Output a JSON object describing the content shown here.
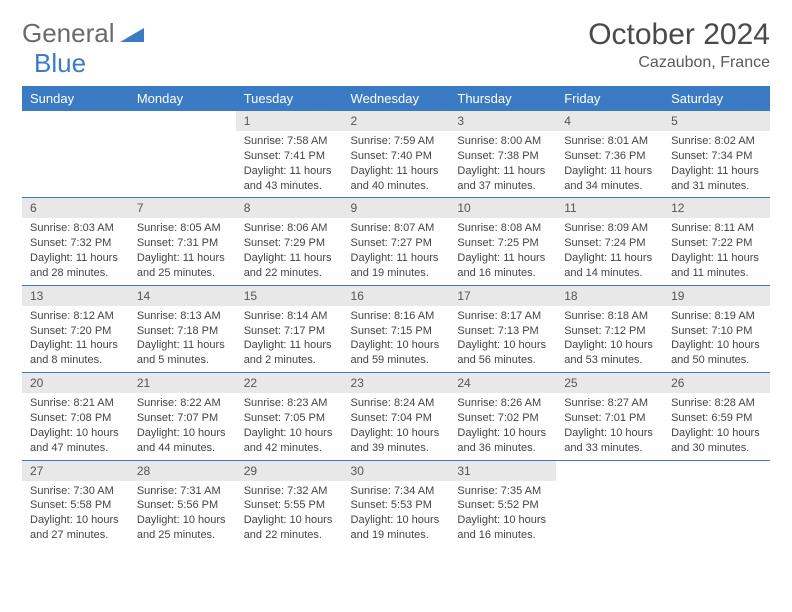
{
  "brand": {
    "part1": "General",
    "part2": "Blue"
  },
  "title": "October 2024",
  "location": "Cazaubon, France",
  "accent_color": "#3b7bc4",
  "header_bg": "#e8e8e8",
  "day_names": [
    "Sunday",
    "Monday",
    "Tuesday",
    "Wednesday",
    "Thursday",
    "Friday",
    "Saturday"
  ],
  "weeks": [
    [
      null,
      null,
      {
        "n": "1",
        "sr": "7:58 AM",
        "ss": "7:41 PM",
        "dl": "11 hours and 43 minutes."
      },
      {
        "n": "2",
        "sr": "7:59 AM",
        "ss": "7:40 PM",
        "dl": "11 hours and 40 minutes."
      },
      {
        "n": "3",
        "sr": "8:00 AM",
        "ss": "7:38 PM",
        "dl": "11 hours and 37 minutes."
      },
      {
        "n": "4",
        "sr": "8:01 AM",
        "ss": "7:36 PM",
        "dl": "11 hours and 34 minutes."
      },
      {
        "n": "5",
        "sr": "8:02 AM",
        "ss": "7:34 PM",
        "dl": "11 hours and 31 minutes."
      }
    ],
    [
      {
        "n": "6",
        "sr": "8:03 AM",
        "ss": "7:32 PM",
        "dl": "11 hours and 28 minutes."
      },
      {
        "n": "7",
        "sr": "8:05 AM",
        "ss": "7:31 PM",
        "dl": "11 hours and 25 minutes."
      },
      {
        "n": "8",
        "sr": "8:06 AM",
        "ss": "7:29 PM",
        "dl": "11 hours and 22 minutes."
      },
      {
        "n": "9",
        "sr": "8:07 AM",
        "ss": "7:27 PM",
        "dl": "11 hours and 19 minutes."
      },
      {
        "n": "10",
        "sr": "8:08 AM",
        "ss": "7:25 PM",
        "dl": "11 hours and 16 minutes."
      },
      {
        "n": "11",
        "sr": "8:09 AM",
        "ss": "7:24 PM",
        "dl": "11 hours and 14 minutes."
      },
      {
        "n": "12",
        "sr": "8:11 AM",
        "ss": "7:22 PM",
        "dl": "11 hours and 11 minutes."
      }
    ],
    [
      {
        "n": "13",
        "sr": "8:12 AM",
        "ss": "7:20 PM",
        "dl": "11 hours and 8 minutes."
      },
      {
        "n": "14",
        "sr": "8:13 AM",
        "ss": "7:18 PM",
        "dl": "11 hours and 5 minutes."
      },
      {
        "n": "15",
        "sr": "8:14 AM",
        "ss": "7:17 PM",
        "dl": "11 hours and 2 minutes."
      },
      {
        "n": "16",
        "sr": "8:16 AM",
        "ss": "7:15 PM",
        "dl": "10 hours and 59 minutes."
      },
      {
        "n": "17",
        "sr": "8:17 AM",
        "ss": "7:13 PM",
        "dl": "10 hours and 56 minutes."
      },
      {
        "n": "18",
        "sr": "8:18 AM",
        "ss": "7:12 PM",
        "dl": "10 hours and 53 minutes."
      },
      {
        "n": "19",
        "sr": "8:19 AM",
        "ss": "7:10 PM",
        "dl": "10 hours and 50 minutes."
      }
    ],
    [
      {
        "n": "20",
        "sr": "8:21 AM",
        "ss": "7:08 PM",
        "dl": "10 hours and 47 minutes."
      },
      {
        "n": "21",
        "sr": "8:22 AM",
        "ss": "7:07 PM",
        "dl": "10 hours and 44 minutes."
      },
      {
        "n": "22",
        "sr": "8:23 AM",
        "ss": "7:05 PM",
        "dl": "10 hours and 42 minutes."
      },
      {
        "n": "23",
        "sr": "8:24 AM",
        "ss": "7:04 PM",
        "dl": "10 hours and 39 minutes."
      },
      {
        "n": "24",
        "sr": "8:26 AM",
        "ss": "7:02 PM",
        "dl": "10 hours and 36 minutes."
      },
      {
        "n": "25",
        "sr": "8:27 AM",
        "ss": "7:01 PM",
        "dl": "10 hours and 33 minutes."
      },
      {
        "n": "26",
        "sr": "8:28 AM",
        "ss": "6:59 PM",
        "dl": "10 hours and 30 minutes."
      }
    ],
    [
      {
        "n": "27",
        "sr": "7:30 AM",
        "ss": "5:58 PM",
        "dl": "10 hours and 27 minutes."
      },
      {
        "n": "28",
        "sr": "7:31 AM",
        "ss": "5:56 PM",
        "dl": "10 hours and 25 minutes."
      },
      {
        "n": "29",
        "sr": "7:32 AM",
        "ss": "5:55 PM",
        "dl": "10 hours and 22 minutes."
      },
      {
        "n": "30",
        "sr": "7:34 AM",
        "ss": "5:53 PM",
        "dl": "10 hours and 19 minutes."
      },
      {
        "n": "31",
        "sr": "7:35 AM",
        "ss": "5:52 PM",
        "dl": "10 hours and 16 minutes."
      },
      null,
      null
    ]
  ],
  "labels": {
    "sunrise": "Sunrise:",
    "sunset": "Sunset:",
    "daylight": "Daylight:"
  }
}
